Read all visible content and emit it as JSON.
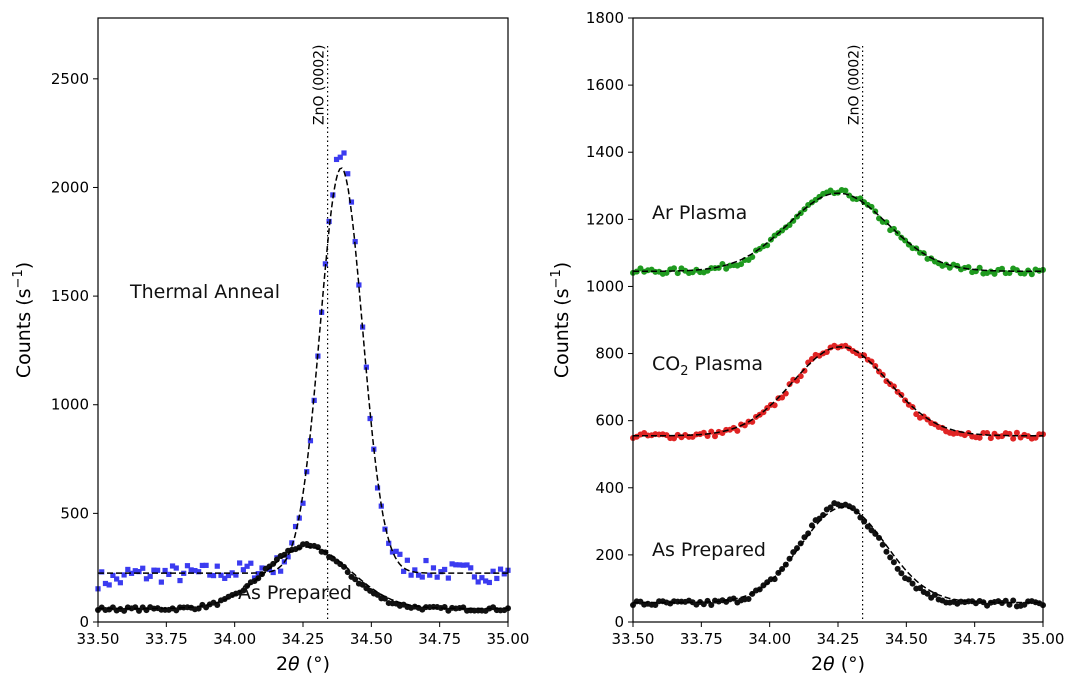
{
  "chart_data": [
    {
      "type": "scatter",
      "xlabel": "2θ (°)",
      "xlabel_main": "2",
      "xlabel_theta": "θ",
      "xlabel_unit": " (°)",
      "ylabel": "Counts (s⁻¹)",
      "ylabel_main": "Counts (s",
      "ylabel_sup": "−1",
      "ylabel_close": ")",
      "xlim": [
        33.5,
        35.0
      ],
      "ylim": [
        0,
        2780
      ],
      "xticks": [
        33.5,
        33.75,
        34.0,
        34.25,
        34.5,
        34.75,
        35.0
      ],
      "xtick_labels": [
        "33.50",
        "33.75",
        "34.00",
        "34.25",
        "34.50",
        "34.75",
        "35.00"
      ],
      "yticks": [
        0,
        500,
        1000,
        1500,
        2000,
        2500
      ],
      "ytick_labels": [
        "0",
        "500",
        "1000",
        "1500",
        "2000",
        "2500"
      ],
      "reference_line": {
        "x": 34.34,
        "label": "ZnO (0002)"
      },
      "annotations": [
        "Thermal Anneal",
        "As Prepared"
      ],
      "series": [
        {
          "name": "Thermal Anneal",
          "color": "#3b3bf0",
          "marker": "square",
          "baseline": 220,
          "peak": 2100,
          "center": 34.39,
          "width": 0.11,
          "fit": {
            "baseline": 225,
            "peak": 2090,
            "center": 34.39,
            "width": 0.115
          }
        },
        {
          "name": "As Prepared",
          "color": "#111111",
          "marker": "circle",
          "baseline": 60,
          "peak": 350,
          "center": 34.26,
          "width": 0.22,
          "fit": {
            "baseline": 62,
            "peak": 345,
            "center": 34.27,
            "width": 0.23
          }
        }
      ]
    },
    {
      "type": "scatter",
      "xlabel": "2θ (°)",
      "xlabel_main": "2",
      "xlabel_theta": "θ",
      "xlabel_unit": " (°)",
      "ylabel": "Counts (s⁻¹)",
      "ylabel_main": "Counts (s",
      "ylabel_sup": "−1",
      "ylabel_close": ")",
      "xlim": [
        33.5,
        35.0
      ],
      "ylim": [
        0,
        1800
      ],
      "xticks": [
        33.5,
        33.75,
        34.0,
        34.25,
        34.5,
        34.75,
        35.0
      ],
      "xtick_labels": [
        "33.50",
        "33.75",
        "34.00",
        "34.25",
        "34.50",
        "34.75",
        "35.00"
      ],
      "yticks": [
        0,
        200,
        400,
        600,
        800,
        1000,
        1200,
        1400,
        1600,
        1800
      ],
      "ytick_labels": [
        "0",
        "200",
        "400",
        "600",
        "800",
        "1000",
        "1200",
        "1400",
        "1600",
        "1800"
      ],
      "reference_line": {
        "x": 34.34,
        "label": "ZnO (0002)"
      },
      "annotations": [
        "Ar Plasma",
        "CO₂ Plasma",
        "As Prepared"
      ],
      "co2_main": "CO",
      "co2_sub": "2",
      "co2_rest": " Plasma",
      "series": [
        {
          "name": "Ar Plasma",
          "color": "#1f9a1f",
          "marker": "circle",
          "baseline": 1045,
          "peak": 1280,
          "center": 34.25,
          "width": 0.26,
          "fit": {
            "baseline": 1045,
            "peak": 1278,
            "center": 34.25,
            "width": 0.27
          }
        },
        {
          "name": "CO₂ Plasma",
          "color": "#e02424",
          "marker": "circle",
          "baseline": 555,
          "peak": 825,
          "center": 34.26,
          "width": 0.25,
          "fit": {
            "baseline": 555,
            "peak": 820,
            "center": 34.26,
            "width": 0.26
          }
        },
        {
          "name": "As Prepared",
          "color": "#111111",
          "marker": "circle",
          "baseline": 55,
          "peak": 350,
          "center": 34.26,
          "width": 0.22,
          "fit": {
            "baseline": 58,
            "peak": 342,
            "center": 34.27,
            "width": 0.23
          }
        }
      ]
    }
  ]
}
